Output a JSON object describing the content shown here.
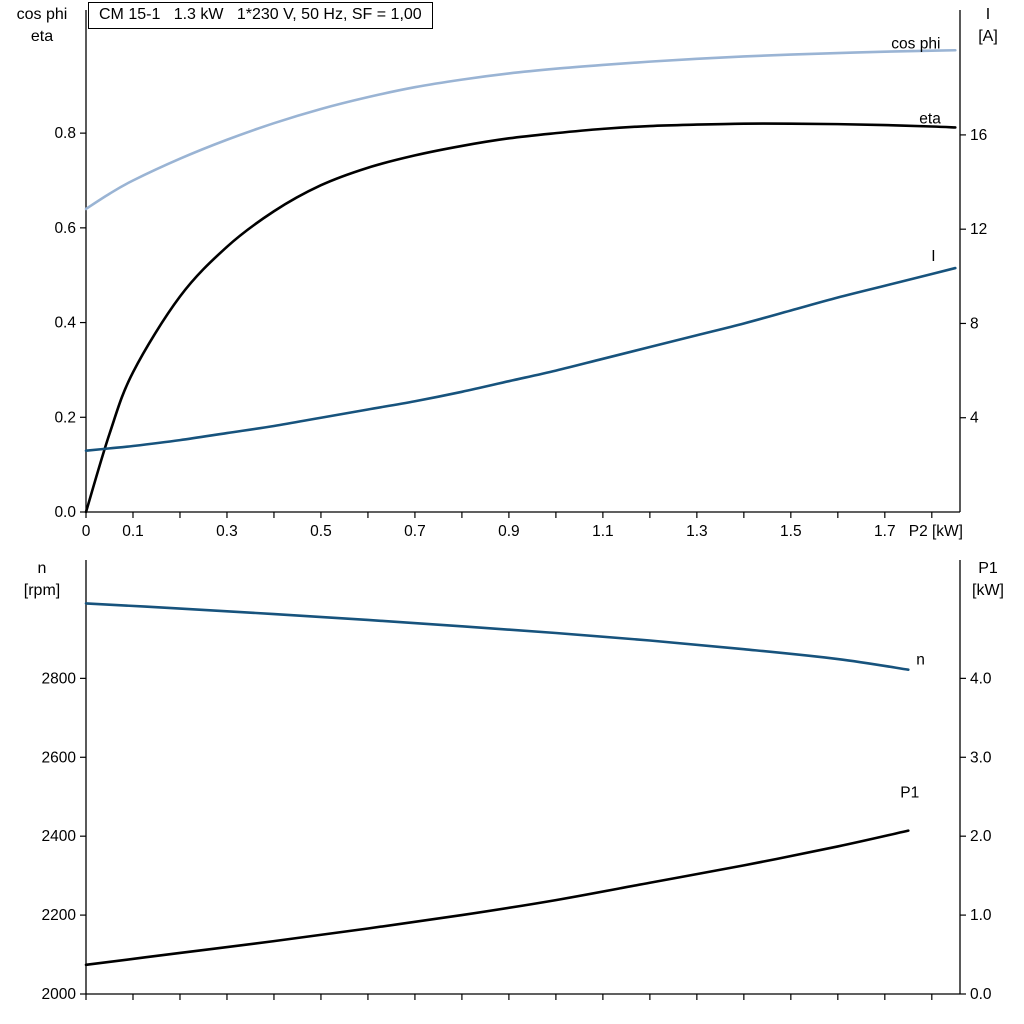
{
  "colors": {
    "light_blue": "#9ab4d4",
    "dark_blue": "#17537d",
    "black": "#000000"
  },
  "chart_data": [
    {
      "type": "line",
      "title": "CM 15-1   1.3 kW   1*230 V, 50 Hz, SF = 1,00",
      "x_axis": {
        "label": "P2 [kW]",
        "range": [
          0,
          1.86
        ],
        "ticks": [
          0,
          0.1,
          0.2,
          0.3,
          0.4,
          0.5,
          0.6,
          0.7,
          0.8,
          0.9,
          1.0,
          1.1,
          1.2,
          1.3,
          1.4,
          1.5,
          1.6,
          1.7,
          1.8
        ],
        "tick_labels": [
          "0",
          "0.1",
          "",
          "0.3",
          "",
          "0.5",
          "",
          "0.7",
          "",
          "0.9",
          "",
          "1.1",
          "",
          "1.3",
          "",
          "1.5",
          "",
          "1.7",
          ""
        ]
      },
      "left_axis": {
        "title_lines": [
          "cos phi",
          "eta"
        ],
        "range": [
          0,
          1.06
        ],
        "ticks": [
          0,
          0.2,
          0.4,
          0.6,
          0.8
        ],
        "tick_labels": [
          "0.0",
          "0.2",
          "0.4",
          "0.6",
          "0.8"
        ]
      },
      "right_axis": {
        "title_lines": [
          "I",
          "[A]"
        ],
        "range": [
          0,
          21.3
        ],
        "ticks": [
          4,
          8,
          12,
          16
        ],
        "tick_labels": [
          "4",
          "8",
          "12",
          "16"
        ]
      },
      "grid": false,
      "series": [
        {
          "name": "cos phi",
          "label": "cos phi",
          "axis": "left",
          "color": "#9ab4d4",
          "label_dx": -64,
          "label_dy": -2,
          "x": [
            0,
            0.05,
            0.1,
            0.2,
            0.3,
            0.4,
            0.5,
            0.6,
            0.7,
            0.8,
            0.9,
            1.0,
            1.1,
            1.2,
            1.3,
            1.4,
            1.5,
            1.6,
            1.7,
            1.8,
            1.85
          ],
          "y": [
            0.64,
            0.672,
            0.7,
            0.746,
            0.786,
            0.821,
            0.851,
            0.876,
            0.897,
            0.913,
            0.926,
            0.936,
            0.944,
            0.951,
            0.957,
            0.962,
            0.966,
            0.969,
            0.972,
            0.974,
            0.975
          ]
        },
        {
          "name": "eta",
          "label": "eta",
          "axis": "left",
          "color": "#000000",
          "label_dx": -36,
          "label_dy": -4,
          "x": [
            0,
            0.05,
            0.1,
            0.2,
            0.3,
            0.4,
            0.5,
            0.6,
            0.7,
            0.8,
            0.9,
            1.0,
            1.1,
            1.2,
            1.3,
            1.4,
            1.5,
            1.6,
            1.7,
            1.8,
            1.85
          ],
          "y": [
            0.0,
            0.165,
            0.295,
            0.455,
            0.56,
            0.635,
            0.69,
            0.727,
            0.753,
            0.773,
            0.789,
            0.8,
            0.809,
            0.815,
            0.818,
            0.82,
            0.82,
            0.819,
            0.817,
            0.814,
            0.812
          ]
        },
        {
          "name": "I",
          "label": "I",
          "axis": "right",
          "color": "#17537d",
          "label_dx": -24,
          "label_dy": -7,
          "x": [
            0,
            0.05,
            0.1,
            0.2,
            0.3,
            0.4,
            0.5,
            0.6,
            0.7,
            0.8,
            0.9,
            1.0,
            1.1,
            1.2,
            1.3,
            1.4,
            1.5,
            1.6,
            1.7,
            1.8,
            1.85
          ],
          "y": [
            2.6,
            2.7,
            2.8,
            3.05,
            3.35,
            3.65,
            4.0,
            4.35,
            4.7,
            5.1,
            5.55,
            6.0,
            6.5,
            7.0,
            7.5,
            8.0,
            8.55,
            9.1,
            9.6,
            10.1,
            10.35
          ]
        }
      ]
    },
    {
      "type": "line",
      "title": "",
      "x_axis": {
        "label": "",
        "range": [
          0,
          1.86
        ],
        "ticks": [
          0,
          0.1,
          0.2,
          0.3,
          0.4,
          0.5,
          0.6,
          0.7,
          0.8,
          0.9,
          1.0,
          1.1,
          1.2,
          1.3,
          1.4,
          1.5,
          1.6,
          1.7,
          1.8
        ],
        "tick_labels": [
          "",
          "",
          "",
          "",
          "",
          "",
          "",
          "",
          "",
          "",
          "",
          "",
          "",
          "",
          "",
          "",
          "",
          "",
          ""
        ]
      },
      "left_axis": {
        "title_lines": [
          "n",
          "[rpm]"
        ],
        "range": [
          2000,
          3100
        ],
        "ticks": [
          2000,
          2200,
          2400,
          2600,
          2800
        ],
        "tick_labels": [
          "2000",
          "2200",
          "2400",
          "2600",
          "2800"
        ]
      },
      "right_axis": {
        "title_lines": [
          "P1",
          "[kW]"
        ],
        "range": [
          0,
          5.5
        ],
        "ticks": [
          0,
          1,
          2,
          3,
          4
        ],
        "tick_labels": [
          "0.0",
          "1.0",
          "2.0",
          "3.0",
          "4.0"
        ]
      },
      "grid": false,
      "series": [
        {
          "name": "n",
          "label": "n",
          "axis": "left",
          "color": "#17537d",
          "label_dx": 8,
          "label_dy": -5,
          "x": [
            0,
            0.2,
            0.4,
            0.6,
            0.8,
            1.0,
            1.2,
            1.4,
            1.6,
            1.75
          ],
          "y": [
            2990,
            2977,
            2963,
            2948,
            2932,
            2915,
            2896,
            2874,
            2849,
            2822
          ]
        },
        {
          "name": "P1",
          "label": "P1",
          "axis": "right",
          "color": "#000000",
          "label_dx": -8,
          "label_dy": -33,
          "x": [
            0,
            0.2,
            0.4,
            0.6,
            0.8,
            1.0,
            1.2,
            1.4,
            1.6,
            1.75
          ],
          "y": [
            0.37,
            0.52,
            0.67,
            0.83,
            1.0,
            1.19,
            1.41,
            1.63,
            1.87,
            2.07
          ]
        }
      ]
    }
  ]
}
